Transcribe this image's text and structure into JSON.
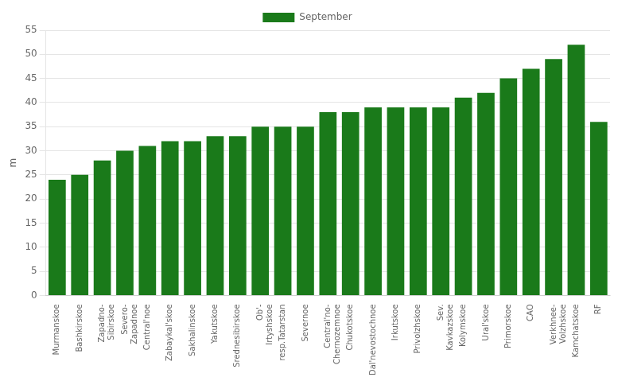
{
  "chart_data": {
    "type": "bar",
    "categories": [
      "Murmanskoe",
      "Bashkirskoe",
      "Zapadno-\nSibirskoe",
      "Severo-\nZapadnoe",
      "Central'noe",
      "Zabaykal'skoe",
      "Sakhalinskoe",
      "Yakutskoe",
      "Srednesibirskoe",
      "Ob'-\nIrtyshskoe",
      "resp.Tatarstan",
      "Severnoe",
      "Central'no-\nChernozemnoe",
      "Chukotskoe",
      "Dal'nevostochnoe",
      "Irkutskoe",
      "Privolzhskoe",
      "Sev.\nKavkazskoe",
      "Kolymskoe",
      "Ural'skoe",
      "Primorskoe",
      "CAO",
      "Verkhnee-\nVolzhskoe",
      "Kamchatskoe",
      "RF"
    ],
    "series": [
      {
        "name": "September",
        "color": "#1a7a1a",
        "values": [
          24,
          25,
          28,
          30,
          31,
          32,
          32,
          33,
          33,
          35,
          35,
          35,
          38,
          38,
          39,
          39,
          39,
          39,
          41,
          42,
          45,
          47,
          49,
          52,
          36
        ]
      }
    ],
    "ylabel": "m",
    "ylim": [
      0,
      55
    ],
    "yticks": [
      0,
      5,
      10,
      15,
      20,
      25,
      30,
      35,
      40,
      45,
      50,
      55
    ],
    "grid": true,
    "legend": "top"
  }
}
